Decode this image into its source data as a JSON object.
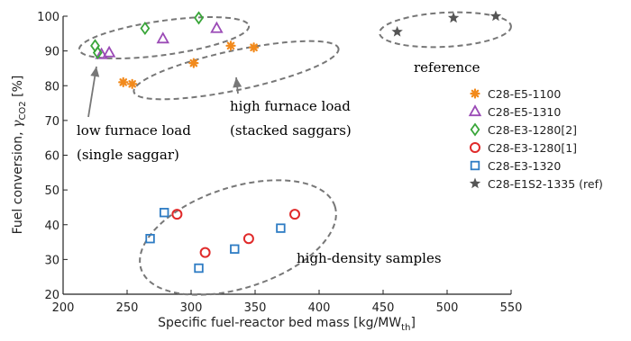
{
  "chart_data": {
    "type": "scatter",
    "xlabel": "Specific fuel-reactor bed mass [kg/MW",
    "xlabel_sub": "th",
    "xlabel_end": "]",
    "ylabel": "Fuel conversion, ",
    "ylabel_symbol": "γ",
    "ylabel_sub": "CO2",
    "ylabel_end": " [%]",
    "xlim": [
      200,
      550
    ],
    "ylim": [
      20,
      100
    ],
    "xticks": [
      "200",
      "250",
      "300",
      "350",
      "400",
      "450",
      "500",
      "550"
    ],
    "yticks": [
      "20",
      "30",
      "40",
      "50",
      "60",
      "70",
      "80",
      "90",
      "100"
    ],
    "grid": false,
    "legend_position": "right",
    "series": [
      {
        "name": "C28-E5-1100",
        "marker": "asterisk",
        "color": "#f28a1c",
        "points": [
          [
            247,
            81
          ],
          [
            254,
            80.5
          ],
          [
            302,
            86.5
          ],
          [
            331,
            91.5
          ],
          [
            349,
            91
          ]
        ]
      },
      {
        "name": "C28-E5-1310",
        "marker": "triangle",
        "color": "#9b4bb6",
        "points": [
          [
            230,
            89
          ],
          [
            236,
            89.5
          ],
          [
            278,
            93.5
          ],
          [
            320,
            96.5
          ]
        ]
      },
      {
        "name": "C28-E3-1280[2]",
        "marker": "diamond",
        "color": "#3aa63a",
        "points": [
          [
            225,
            91.5
          ],
          [
            227,
            89.5
          ],
          [
            264,
            96.5
          ],
          [
            306,
            99.5
          ]
        ]
      },
      {
        "name": "C28-E3-1280[1]",
        "marker": "circle",
        "color": "#e02a2a",
        "points": [
          [
            289,
            43
          ],
          [
            311,
            32
          ],
          [
            345,
            36
          ],
          [
            381,
            43
          ]
        ]
      },
      {
        "name": "C28-E3-1320",
        "marker": "square",
        "color": "#2e7cc4",
        "points": [
          [
            268,
            36
          ],
          [
            279,
            43.5
          ],
          [
            306,
            27.5
          ],
          [
            334,
            33
          ],
          [
            370,
            39
          ]
        ]
      },
      {
        "name": "C28-E1S2-1335 (ref)",
        "marker": "star",
        "color": "#555555",
        "points": [
          [
            461,
            95.5
          ],
          [
            505,
            99.5
          ],
          [
            538,
            100
          ]
        ]
      }
    ],
    "annotations": {
      "reference": "reference",
      "high_furnace_line1": "high furnace load",
      "high_furnace_line2": "(stacked saggars)",
      "low_furnace_line1": "low furnace load",
      "low_furnace_line2": "(single saggar)",
      "high_density": "high-density samples"
    }
  }
}
